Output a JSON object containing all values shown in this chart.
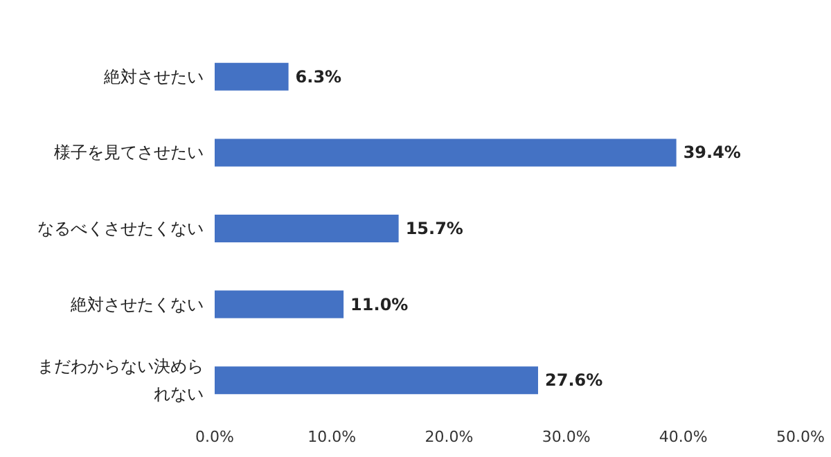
{
  "chart_data": {
    "type": "bar",
    "orientation": "horizontal",
    "categories": [
      "絶対させたい",
      "様子を見てさせたい",
      "なるべくさせたくない",
      "絶対させたくない",
      "まだわからない決められない"
    ],
    "values": [
      6.3,
      39.4,
      15.7,
      11.0,
      27.6
    ],
    "value_labels": [
      "6.3%",
      "39.4%",
      "15.7%",
      "11.0%",
      "27.6%"
    ],
    "color": "#4472c4",
    "xlim": [
      0,
      50
    ],
    "xticks": [
      {
        "value": 0,
        "label": "0.0%"
      },
      {
        "value": 10,
        "label": "10.0%"
      },
      {
        "value": 20,
        "label": "20.0%"
      },
      {
        "value": 30,
        "label": "30.0%"
      },
      {
        "value": 40,
        "label": "40.0%"
      },
      {
        "value": 50,
        "label": "50.0%"
      }
    ],
    "grid": false
  }
}
